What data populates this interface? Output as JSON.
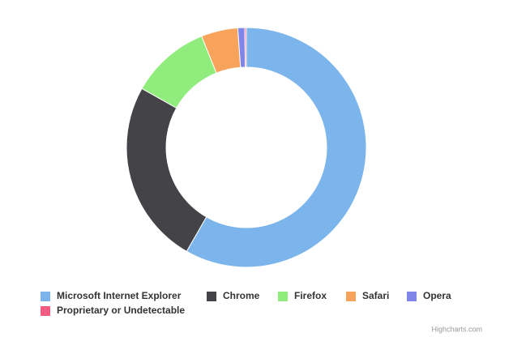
{
  "chart_data": {
    "type": "donut",
    "categories": [
      "Microsoft Internet Explorer",
      "Chrome",
      "Firefox",
      "Safari",
      "Opera",
      "Proprietary or Undetectable"
    ],
    "values": [
      56.33,
      24.03,
      10.38,
      4.77,
      0.91,
      0.2
    ],
    "colors": [
      "#7cb5ec",
      "#434348",
      "#90ed7d",
      "#f7a35c",
      "#8085e9",
      "#f15c80"
    ],
    "legend": "bottom",
    "credits": "Highcharts.com"
  }
}
